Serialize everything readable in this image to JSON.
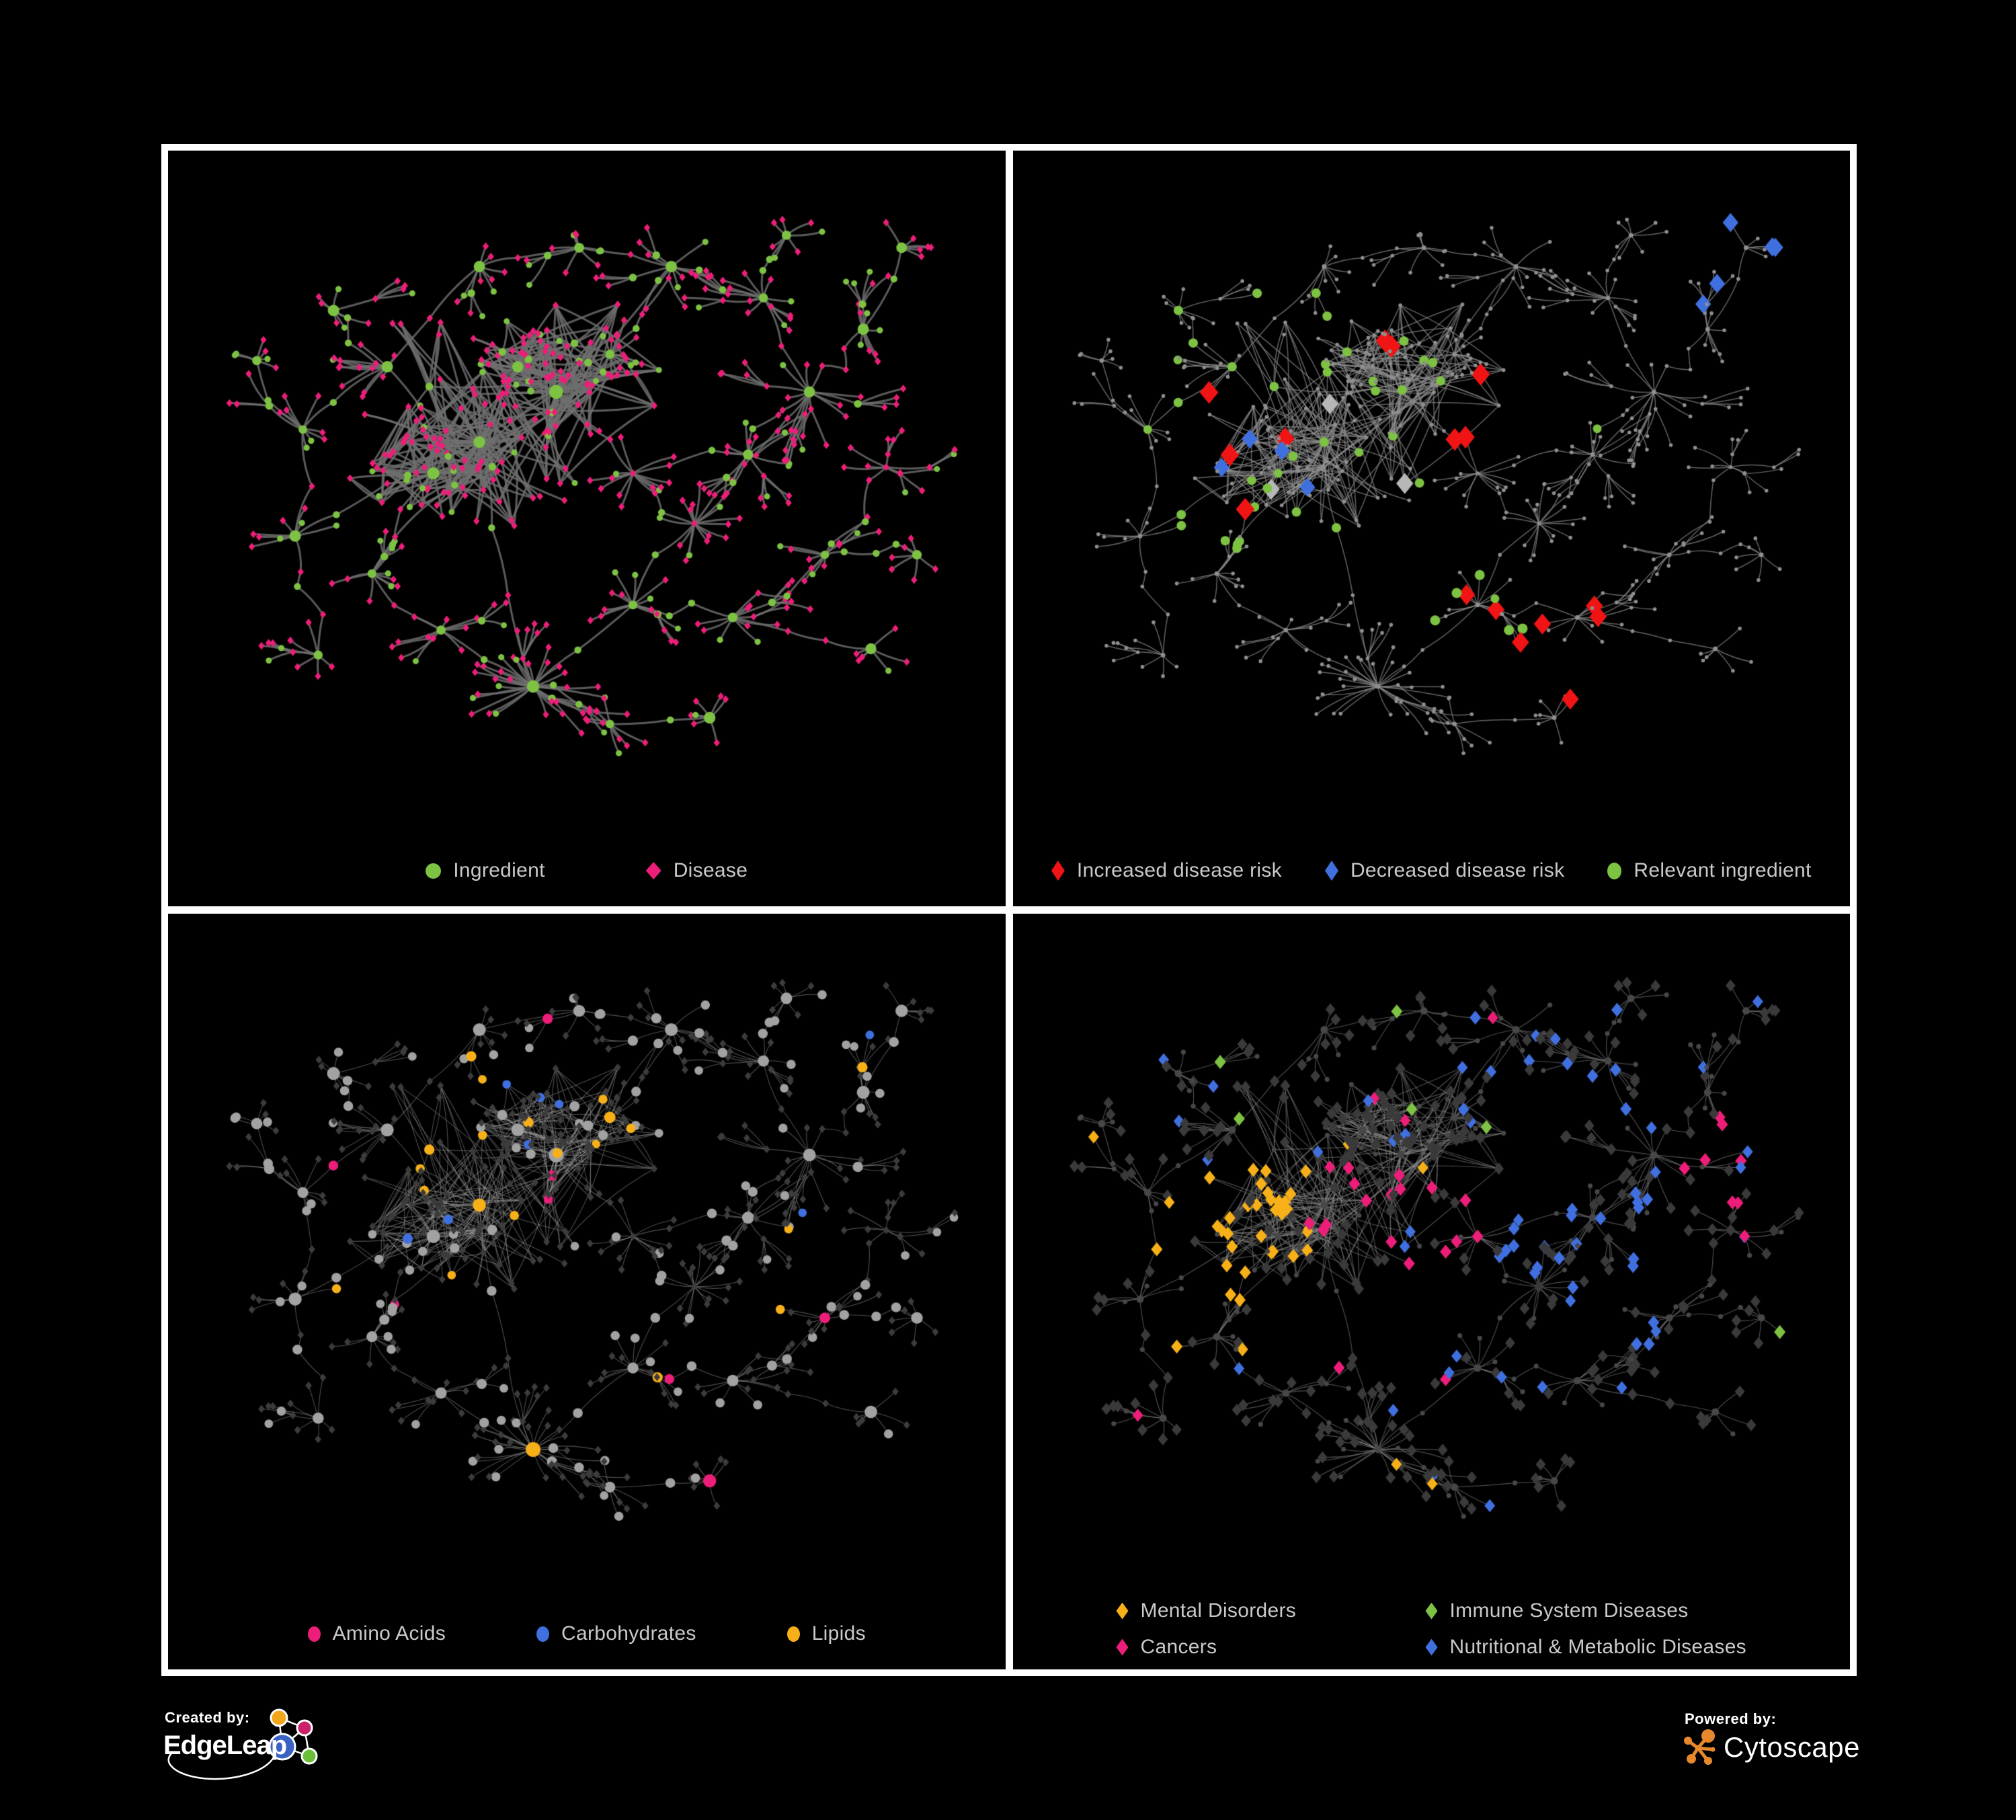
{
  "page": {
    "background": "#000000",
    "panel_border_color": "#ffffff"
  },
  "colors": {
    "green": "#7dc242",
    "pink": "#ed1e79",
    "red": "#f11414",
    "blue": "#4070e0",
    "orange": "#f8b019",
    "silver": "#b7b7b7",
    "grayNode": "#8f8f8f",
    "grayLight": "#a2a2a2",
    "darkDiamond": "#3c3c3c",
    "darkDot": "#474747",
    "legend_text": "#c9c9c9"
  },
  "panels": [
    {
      "name": "ingredient-disease",
      "legend": [
        {
          "label": "Ingredient",
          "shape": "circle",
          "color": "#7dc242"
        },
        {
          "label": "Disease",
          "shape": "diamond",
          "color": "#ed1e79"
        }
      ],
      "style": {
        "mode": "typed",
        "ingredient_color": "#7dc242",
        "disease_color": "#ed1e79",
        "edge": {
          "color": "#6f6f6f",
          "width": 3,
          "alpha": 0.82
        }
      }
    },
    {
      "name": "disease-risk",
      "legend": [
        {
          "label": "Increased disease risk",
          "shape": "diamond",
          "color": "#f11414"
        },
        {
          "label": "Decreased disease risk",
          "shape": "diamond",
          "color": "#4070e0"
        },
        {
          "label": "Relevant ingredient",
          "shape": "circle",
          "color": "#7dc242"
        }
      ],
      "style": {
        "edge": {
          "color": "#8b8b8b",
          "width": 1.5,
          "alpha": 0.7
        },
        "rules": [
          {
            "target": "d",
            "region": [
              0.2,
              0.24,
              0.62,
              0.62
            ],
            "p": 0.1,
            "shape": "diamond",
            "color": "red",
            "size": 13
          },
          {
            "target": "d",
            "region": [
              0.54,
              0.64,
              0.74,
              0.84
            ],
            "p": 0.2,
            "shape": "diamond",
            "color": "red",
            "size": 12
          },
          {
            "target": "d",
            "region": [
              0.22,
              0.36,
              0.36,
              0.54
            ],
            "p": 0.15,
            "shape": "diamond",
            "color": "blue",
            "size": 11
          },
          {
            "target": "d",
            "region": [
              0.78,
              0.06,
              0.97,
              0.22
            ],
            "p": 0.4,
            "shape": "diamond",
            "color": "blue",
            "size": 11
          },
          {
            "target": "d",
            "region": [
              0.24,
              0.28,
              0.6,
              0.64
            ],
            "p": 0.035,
            "shape": "diamond",
            "color": "silver",
            "size": 12
          },
          {
            "target": "any",
            "cluster": 12,
            "p": 0.3,
            "shape": "circle",
            "color": "green",
            "size": 7.5
          },
          {
            "target": "i",
            "region": [
              0.15,
              0.18,
              0.52,
              0.6
            ],
            "p": 0.55,
            "shape": "circle",
            "color": "green",
            "size": 7
          },
          {
            "target": "i",
            "p": 0.05,
            "shape": "circle",
            "color": "green",
            "size": 6.5
          }
        ],
        "default_i": {
          "shape": "circle",
          "color": "grayNode",
          "size": 2.8,
          "hubSize": 3.4
        },
        "default_d": {
          "shape": "circle",
          "color": "grayNode",
          "size": 2.8
        }
      }
    },
    {
      "name": "ingredient-classes",
      "legend": [
        {
          "label": "Amino Acids",
          "shape": "circle",
          "color": "#ed1e79"
        },
        {
          "label": "Carbohydrates",
          "shape": "circle",
          "color": "#4070e0"
        },
        {
          "label": "Lipids",
          "shape": "circle",
          "color": "#f8b019"
        }
      ],
      "style": {
        "edge": {
          "color": "#9c9c9c",
          "width": 1.1,
          "alpha": 0.5
        },
        "rules": [
          {
            "target": "any",
            "role": "hub",
            "cluster": 11,
            "p": 1,
            "shape": "circle",
            "color": "orange",
            "size": 11
          },
          {
            "target": "i",
            "region": [
              0.28,
              0.18,
              0.56,
              0.44
            ],
            "p": 0.5,
            "shape": "circle",
            "color": "orange",
            "sizeMul": 0.9,
            "sizeAdd": 3.5
          },
          {
            "target": "i",
            "region": [
              0.3,
              0.18,
              0.5,
              0.4
            ],
            "p": 0.22,
            "shape": "circle",
            "color": "blue",
            "sizeMul": 0.9,
            "sizeAdd": 3.5
          },
          {
            "target": "i",
            "p": 0.07,
            "shape": "circle",
            "color": "orange",
            "sizeMul": 0.9,
            "sizeAdd": 3.5
          },
          {
            "target": "i",
            "p": 0.055,
            "shape": "circle",
            "color": "pink",
            "sizeMul": 0.9,
            "sizeAdd": 3.5
          },
          {
            "target": "i",
            "p": 0.02,
            "shape": "circle",
            "color": "blue",
            "sizeMul": 0.9,
            "sizeAdd": 3.5
          }
        ],
        "default_i": {
          "shape": "circle",
          "color": "grayLight",
          "sizeMul": 0.9,
          "sizeAdd": 3.5
        },
        "default_d": {
          "shape": "diamond",
          "color": "darkDiamond",
          "size": 4.6
        }
      }
    },
    {
      "name": "disease-categories",
      "legend": [
        {
          "label": "Mental Disorders",
          "shape": "diamond",
          "color": "#f8b019"
        },
        {
          "label": "Immune System Diseases",
          "shape": "diamond",
          "color": "#7dc242"
        },
        {
          "label": "Cancers",
          "shape": "diamond",
          "color": "#ed1e79"
        },
        {
          "label": "Nutritional & Metabolic Diseases",
          "shape": "diamond",
          "color": "#4070e0"
        }
      ],
      "style": {
        "edge": {
          "color": "#8b8b8b",
          "width": 1.2,
          "alpha": 0.55
        },
        "rules": [
          {
            "target": "d",
            "region": [
              0.13,
              0.36,
              0.34,
              0.66
            ],
            "p": 0.72,
            "shape": "diamond",
            "color": "orange",
            "size": 8
          },
          {
            "target": "d",
            "region": [
              0.34,
              0.36,
              0.57,
              0.7
            ],
            "p": 0.4,
            "shape": "diamond",
            "color": "pink",
            "size": 8
          },
          {
            "target": "d",
            "region": [
              0.8,
              0.22,
              0.97,
              0.42
            ],
            "p": 0.45,
            "shape": "diamond",
            "color": "pink",
            "size": 8
          },
          {
            "target": "d",
            "region": [
              0.55,
              0.4,
              0.8,
              0.66
            ],
            "p": 0.45,
            "shape": "diamond",
            "color": "blue",
            "size": 8
          },
          {
            "target": "d",
            "region": [
              0.5,
              0.05,
              0.82,
              0.3
            ],
            "p": 0.22,
            "shape": "diamond",
            "color": "blue",
            "size": 8
          },
          {
            "target": "d",
            "p": 0.09,
            "shape": "diamond",
            "color": "blue",
            "size": 7.5
          },
          {
            "target": "d",
            "p": 0.03,
            "shape": "diamond",
            "color": "orange",
            "size": 7.5
          },
          {
            "target": "d",
            "p": 0.03,
            "shape": "diamond",
            "color": "pink",
            "size": 7.5
          },
          {
            "target": "d",
            "p": 0.022,
            "shape": "diamond",
            "color": "green",
            "size": 8
          }
        ],
        "default_d": {
          "shape": "diamond",
          "color": "#3a3a3a",
          "size": 7
        },
        "default_i": {
          "shape": "circle",
          "color": "darkDot",
          "size": 3.6,
          "hubSize": 5.5
        }
      }
    }
  ],
  "footer": {
    "created_by_label": "Created by:",
    "edgeleap_name": "EdgeLeap",
    "powered_by_label": "Powered by:",
    "cytoscape_name": "Cytoscape",
    "cytoscape_orange": "#e8882c",
    "edgeleap_colors": {
      "orange": "#f2a71b",
      "magenta": "#cc2169",
      "blue": "#3a62c4",
      "green": "#6abf3a"
    }
  },
  "chart_data": {
    "type": "network",
    "note": "Four views of the same ingredient-disease association network: node types, disease-risk highlights, ingredient classes, disease categories",
    "network": {
      "seed": 7,
      "subhub_p": 0.16,
      "ingredient_leaf_p": 0.18,
      "clusters": [
        [
          0.36,
          0.42,
          40,
          0.095
        ],
        [
          0.46,
          0.34,
          34,
          0.085
        ],
        [
          0.41,
          0.3,
          18,
          0.05
        ],
        [
          0.3,
          0.47,
          24,
          0.065
        ],
        [
          0.53,
          0.28,
          15,
          0.05
        ],
        [
          0.24,
          0.3,
          10,
          0.05
        ],
        [
          0.17,
          0.21,
          8,
          0.045
        ],
        [
          0.13,
          0.4,
          9,
          0.05
        ],
        [
          0.12,
          0.57,
          8,
          0.05
        ],
        [
          0.22,
          0.63,
          10,
          0.05
        ],
        [
          0.31,
          0.72,
          9,
          0.05
        ],
        [
          0.43,
          0.81,
          30,
          0.075
        ],
        [
          0.56,
          0.68,
          12,
          0.05
        ],
        [
          0.64,
          0.55,
          14,
          0.055
        ],
        [
          0.71,
          0.44,
          10,
          0.05
        ],
        [
          0.79,
          0.34,
          12,
          0.055
        ],
        [
          0.86,
          0.24,
          9,
          0.05
        ],
        [
          0.73,
          0.19,
          10,
          0.05
        ],
        [
          0.61,
          0.14,
          9,
          0.05
        ],
        [
          0.49,
          0.11,
          8,
          0.045
        ],
        [
          0.36,
          0.14,
          8,
          0.045
        ],
        [
          0.56,
          0.47,
          12,
          0.05
        ],
        [
          0.69,
          0.7,
          10,
          0.05
        ],
        [
          0.81,
          0.6,
          8,
          0.05
        ],
        [
          0.89,
          0.46,
          7,
          0.045
        ],
        [
          0.15,
          0.76,
          7,
          0.045
        ],
        [
          0.53,
          0.87,
          8,
          0.045
        ],
        [
          0.66,
          0.86,
          7,
          0.04
        ],
        [
          0.87,
          0.75,
          6,
          0.04
        ],
        [
          0.93,
          0.6,
          6,
          0.04
        ],
        [
          0.07,
          0.29,
          6,
          0.04
        ],
        [
          0.76,
          0.09,
          7,
          0.04
        ],
        [
          0.91,
          0.11,
          6,
          0.04
        ]
      ],
      "links": [
        [
          0,
          1
        ],
        [
          1,
          2
        ],
        [
          0,
          3
        ],
        [
          1,
          4
        ],
        [
          0,
          5
        ],
        [
          5,
          6
        ],
        [
          5,
          7
        ],
        [
          7,
          8
        ],
        [
          3,
          9
        ],
        [
          9,
          10
        ],
        [
          10,
          11
        ],
        [
          0,
          11
        ],
        [
          11,
          12
        ],
        [
          12,
          13
        ],
        [
          13,
          14
        ],
        [
          14,
          15
        ],
        [
          15,
          16
        ],
        [
          15,
          17
        ],
        [
          17,
          18
        ],
        [
          18,
          19
        ],
        [
          19,
          20
        ],
        [
          20,
          5
        ],
        [
          1,
          21
        ],
        [
          21,
          13
        ],
        [
          12,
          22
        ],
        [
          22,
          23
        ],
        [
          23,
          24
        ],
        [
          8,
          25
        ],
        [
          11,
          26
        ],
        [
          26,
          27
        ],
        [
          22,
          28
        ],
        [
          23,
          29
        ],
        [
          7,
          30
        ],
        [
          17,
          31
        ],
        [
          16,
          32
        ],
        [
          0,
          9
        ],
        [
          1,
          18
        ],
        [
          13,
          15
        ],
        [
          4,
          18
        ],
        [
          3,
          8
        ],
        [
          21,
          14
        ],
        [
          2,
          4
        ]
      ],
      "dense": [
        0,
        1,
        2,
        3
      ]
    }
  }
}
